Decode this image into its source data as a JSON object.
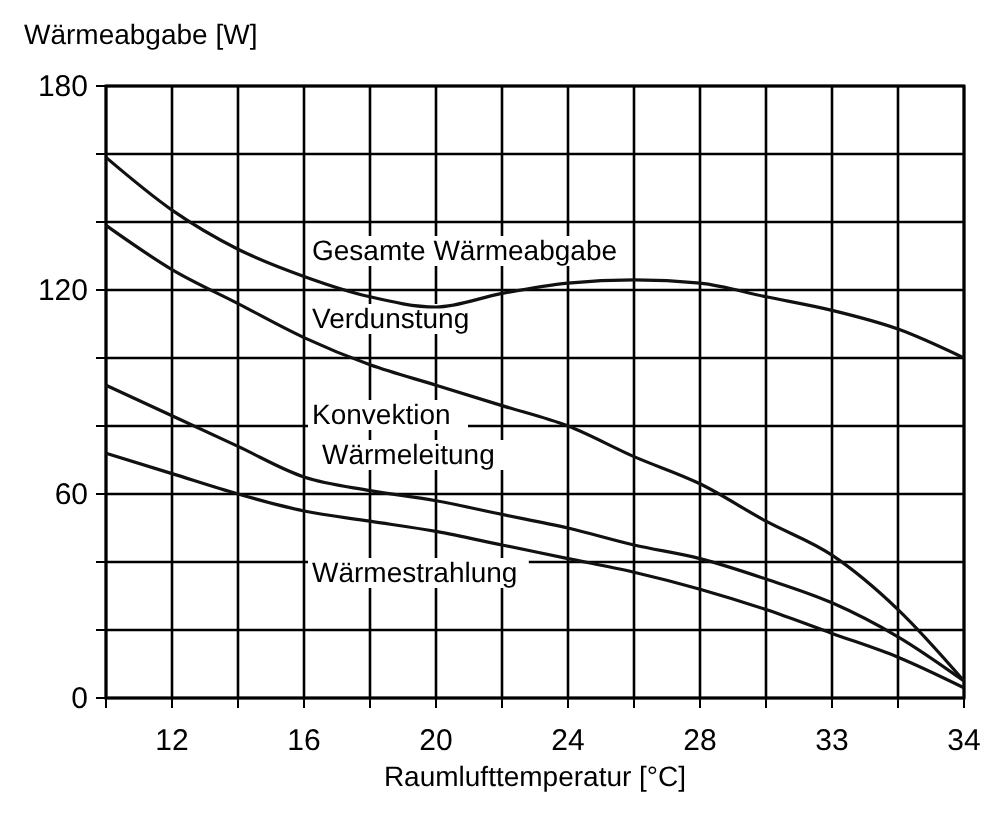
{
  "chart_data": {
    "type": "line",
    "xlabel": "Raumlufttemperatur [°C]",
    "ylabel": "Wärmeabgabe  [W]",
    "categories": [
      null,
      "12",
      null,
      "16",
      null,
      "20",
      null,
      "24",
      null,
      "28",
      null,
      "33",
      null,
      "34"
    ],
    "ylim": [
      0,
      180
    ],
    "yticks": [
      0,
      {
        "value": 20,
        "label": null
      },
      {
        "value": 40,
        "label": null
      },
      60,
      {
        "value": 80,
        "label": null
      },
      {
        "value": 100,
        "label": null
      },
      120,
      {
        "value": 140,
        "label": null
      },
      {
        "value": 160,
        "label": null
      },
      180
    ],
    "grid": true,
    "marker": "none",
    "line_style": "solid",
    "series": [
      {
        "color": "#111111",
        "values": [
          159,
          143.5,
          132,
          124,
          118,
          115,
          119,
          122,
          123,
          122,
          118,
          114,
          108.5,
          100
        ]
      },
      {
        "color": "#111111",
        "values": [
          139,
          126,
          116,
          106,
          98,
          92,
          86,
          80,
          71,
          63,
          52,
          42,
          26,
          5
        ]
      },
      {
        "color": "#111111",
        "values": [
          92,
          83,
          74,
          65,
          61,
          58,
          54,
          50,
          45,
          41,
          35,
          28,
          18,
          5
        ]
      },
      {
        "color": "#111111",
        "values": [
          72,
          66,
          60,
          55,
          52,
          49,
          45,
          41,
          37,
          32,
          26,
          19,
          12,
          3
        ]
      }
    ],
    "annotations": [
      "Gesamte Wärmeabgabe",
      "Verdunstung",
      "Konvektion",
      "Wärmeleitung",
      "Wärmestrahlung"
    ]
  }
}
